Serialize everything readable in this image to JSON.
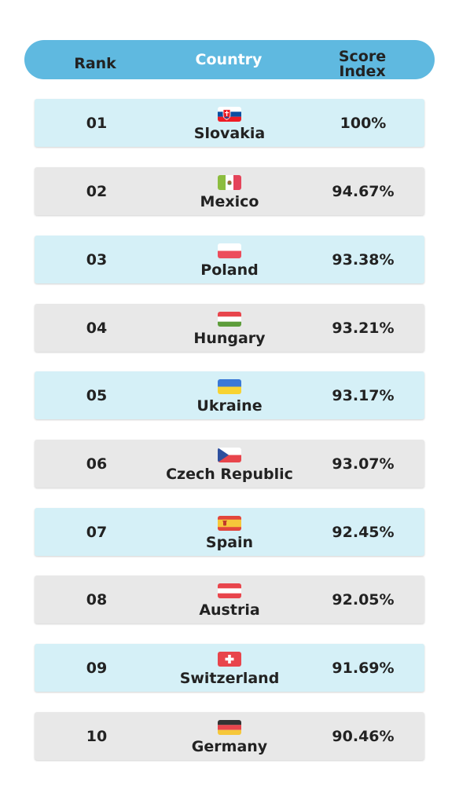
{
  "header": {
    "rank_label": "Rank",
    "country_label": "Country",
    "score_label_line1": "Score",
    "score_label_line2": "Index"
  },
  "colors": {
    "header_bg": "#5fb9e0",
    "row_blue": "#d5f0f7",
    "row_grey": "#e8e8e8"
  },
  "rows": [
    {
      "rank": "01",
      "country": "Slovakia",
      "score": "100%",
      "flag": "slovakia-flag-icon"
    },
    {
      "rank": "02",
      "country": "Mexico",
      "score": "94.67%",
      "flag": "mexico-flag-icon"
    },
    {
      "rank": "03",
      "country": "Poland",
      "score": "93.38%",
      "flag": "poland-flag-icon"
    },
    {
      "rank": "04",
      "country": "Hungary",
      "score": "93.21%",
      "flag": "hungary-flag-icon"
    },
    {
      "rank": "05",
      "country": "Ukraine",
      "score": "93.17%",
      "flag": "ukraine-flag-icon"
    },
    {
      "rank": "06",
      "country": "Czech Republic",
      "score": "93.07%",
      "flag": "czech-republic-flag-icon"
    },
    {
      "rank": "07",
      "country": "Spain",
      "score": "92.45%",
      "flag": "spain-flag-icon"
    },
    {
      "rank": "08",
      "country": "Austria",
      "score": "92.05%",
      "flag": "austria-flag-icon"
    },
    {
      "rank": "09",
      "country": "Switzerland",
      "score": "91.69%",
      "flag": "switzerland-flag-icon"
    },
    {
      "rank": "10",
      "country": "Germany",
      "score": "90.46%",
      "flag": "germany-flag-icon"
    }
  ]
}
